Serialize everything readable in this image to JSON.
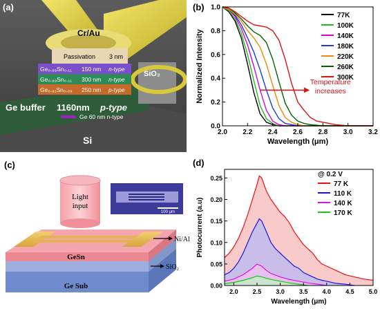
{
  "panels": {
    "a": {
      "label": "(a)",
      "contact": "Cr/Au",
      "passivation": "Passivation",
      "passivation_thick": "3 nm",
      "oxide": "SiO₂",
      "layers": [
        {
          "comp": "Ge₀.₈₉Sn₀.₁₁",
          "thick": "150 nm",
          "type": "n-type",
          "color": "#7b4fc9"
        },
        {
          "comp": "Ge₀.₈₉Sn₀.₁₁",
          "thick": "300 nm",
          "type": "n-type",
          "color": "#2e8b57"
        },
        {
          "comp": "Ge₀.₉₁Sn₀.₀₉",
          "thick": "250 nm",
          "type": "p-type",
          "color": "#c46a2a"
        }
      ],
      "buffer": "Ge buffer",
      "buffer_thick": "1160nm",
      "buffer_type": "p-type",
      "ge_layer": "Ge 60 nm n-type",
      "substrate": "Si"
    },
    "c": {
      "label": "(c)",
      "light": [
        "Light",
        "input"
      ],
      "contact": "Ni/Al",
      "oxide": "SiO₂",
      "absorber": "GeSn",
      "substrate": "Ge Sub",
      "scale_bar": "100 μm"
    }
  },
  "chart_data": [
    {
      "id": "b",
      "panel_label": "(b)",
      "type": "line",
      "xlabel": "Wavelength (μm)",
      "ylabel": "Normalized Intensity",
      "xlim": [
        2.0,
        3.2
      ],
      "ylim": [
        0.0,
        1.0
      ],
      "xticks": [
        "2.0",
        "2.2",
        "2.4",
        "2.6",
        "2.8",
        "3.0",
        "3.2"
      ],
      "yticks": [
        "0.0",
        "0.2",
        "0.4",
        "0.6",
        "0.8",
        "1.0"
      ],
      "legend_position": "top-right",
      "annotation": [
        "Temperature",
        "increases"
      ],
      "series": [
        {
          "name": "77K",
          "color": "#000000",
          "x": [
            2.0,
            2.05,
            2.1,
            2.15,
            2.2,
            2.25,
            2.3,
            2.35,
            2.4,
            2.45,
            2.5,
            2.6,
            2.8,
            3.2
          ],
          "y": [
            1.0,
            0.96,
            0.88,
            0.74,
            0.52,
            0.28,
            0.1,
            0.03,
            0.01,
            0.0,
            0.0,
            0.0,
            0.0,
            0.0
          ]
        },
        {
          "name": "100K",
          "color": "#22bb22",
          "x": [
            2.0,
            2.05,
            2.1,
            2.15,
            2.2,
            2.25,
            2.3,
            2.35,
            2.4,
            2.45,
            2.5,
            2.6,
            2.8,
            3.2
          ],
          "y": [
            1.0,
            0.97,
            0.9,
            0.78,
            0.6,
            0.38,
            0.17,
            0.06,
            0.02,
            0.0,
            0.0,
            0.0,
            0.0,
            0.0
          ]
        },
        {
          "name": "140K",
          "color": "#dd00dd",
          "x": [
            2.0,
            2.05,
            2.1,
            2.15,
            2.2,
            2.25,
            2.3,
            2.35,
            2.4,
            2.45,
            2.5,
            2.6,
            2.8,
            3.2
          ],
          "y": [
            1.0,
            0.98,
            0.92,
            0.82,
            0.68,
            0.5,
            0.3,
            0.13,
            0.04,
            0.01,
            0.0,
            0.0,
            0.0,
            0.0
          ]
        },
        {
          "name": "180K",
          "color": "#1a3bd6",
          "x": [
            2.0,
            2.05,
            2.1,
            2.15,
            2.2,
            2.25,
            2.3,
            2.35,
            2.4,
            2.45,
            2.5,
            2.55,
            2.6,
            2.8,
            3.2
          ],
          "y": [
            1.0,
            0.98,
            0.93,
            0.85,
            0.74,
            0.62,
            0.47,
            0.3,
            0.15,
            0.06,
            0.02,
            0.01,
            0.0,
            0.0,
            0.0
          ]
        },
        {
          "name": "220K",
          "color": "#ee8a00",
          "x": [
            2.0,
            2.05,
            2.1,
            2.15,
            2.2,
            2.25,
            2.3,
            2.35,
            2.4,
            2.45,
            2.5,
            2.55,
            2.6,
            2.65,
            2.8,
            3.2
          ],
          "y": [
            1.0,
            0.98,
            0.94,
            0.88,
            0.8,
            0.74,
            0.66,
            0.52,
            0.34,
            0.17,
            0.07,
            0.03,
            0.01,
            0.0,
            0.0,
            0.0
          ]
        },
        {
          "name": "260K",
          "color": "#006400",
          "x": [
            2.0,
            2.05,
            2.1,
            2.15,
            2.2,
            2.25,
            2.3,
            2.35,
            2.4,
            2.45,
            2.5,
            2.55,
            2.6,
            2.65,
            2.7,
            2.8,
            3.2
          ],
          "y": [
            1.0,
            0.99,
            0.95,
            0.9,
            0.84,
            0.79,
            0.76,
            0.7,
            0.56,
            0.37,
            0.19,
            0.09,
            0.04,
            0.02,
            0.01,
            0.0,
            0.0
          ]
        },
        {
          "name": "300K",
          "color": "#dd1111",
          "x": [
            2.0,
            2.05,
            2.1,
            2.15,
            2.2,
            2.25,
            2.3,
            2.35,
            2.4,
            2.45,
            2.5,
            2.55,
            2.6,
            2.65,
            2.7,
            2.75,
            2.8,
            2.9,
            3.0,
            3.2
          ],
          "y": [
            1.0,
            0.99,
            0.96,
            0.92,
            0.88,
            0.85,
            0.84,
            0.83,
            0.8,
            0.72,
            0.56,
            0.36,
            0.2,
            0.13,
            0.07,
            0.04,
            0.03,
            0.01,
            0.0,
            0.0
          ]
        }
      ]
    },
    {
      "id": "d",
      "panel_label": "(d)",
      "type": "area",
      "xlabel": "Wavelength (μm)",
      "ylabel": "Photocurrent (a.u)",
      "xlim": [
        1.8,
        5.0
      ],
      "ylim": [
        0.0,
        0.27
      ],
      "xticks": [
        "2.0",
        "2.5",
        "3.0",
        "3.5",
        "4.0",
        "4.5",
        "5.0"
      ],
      "yticks": [
        "0.00",
        "0.05",
        "0.10",
        "0.15",
        "0.20",
        "0.25"
      ],
      "legend_title": "@ 0.2 V",
      "legend_position": "top-right",
      "series": [
        {
          "name": "77 K",
          "color": "#ee1111",
          "fill": "#f6b8b8",
          "x": [
            1.8,
            1.9,
            2.0,
            2.1,
            2.2,
            2.3,
            2.4,
            2.5,
            2.55,
            2.6,
            2.7,
            2.8,
            2.9,
            3.0,
            3.1,
            3.2,
            3.3,
            3.4,
            3.5,
            3.6,
            3.7,
            3.8,
            3.9,
            4.0,
            4.2,
            4.4,
            4.6,
            4.8,
            5.0
          ],
          "y": [
            0.065,
            0.075,
            0.09,
            0.11,
            0.135,
            0.165,
            0.2,
            0.235,
            0.255,
            0.25,
            0.22,
            0.2,
            0.185,
            0.17,
            0.16,
            0.145,
            0.125,
            0.11,
            0.095,
            0.085,
            0.075,
            0.06,
            0.05,
            0.045,
            0.035,
            0.025,
            0.02,
            0.015,
            0.012
          ]
        },
        {
          "name": "110 K",
          "color": "#1515dd",
          "fill": "#b9b9f3",
          "x": [
            1.8,
            1.9,
            2.0,
            2.1,
            2.2,
            2.3,
            2.4,
            2.5,
            2.55,
            2.6,
            2.7,
            2.8,
            2.9,
            3.0,
            3.1,
            3.2,
            3.3,
            3.4,
            3.5,
            3.6,
            3.7,
            3.8,
            3.9,
            4.0,
            4.2,
            4.4,
            4.6
          ],
          "y": [
            0.025,
            0.03,
            0.04,
            0.055,
            0.075,
            0.1,
            0.125,
            0.145,
            0.155,
            0.15,
            0.125,
            0.1,
            0.085,
            0.075,
            0.065,
            0.055,
            0.045,
            0.04,
            0.03,
            0.025,
            0.02,
            0.015,
            0.012,
            0.01,
            0.005,
            0.003,
            0.0
          ]
        },
        {
          "name": "140 K",
          "color": "#dd11dd",
          "fill": "#f0c0f0",
          "x": [
            1.8,
            2.0,
            2.2,
            2.4,
            2.5,
            2.6,
            2.7,
            2.8,
            3.0,
            3.2,
            3.4,
            3.6,
            3.8,
            4.0
          ],
          "y": [
            0.01,
            0.015,
            0.025,
            0.04,
            0.05,
            0.045,
            0.035,
            0.028,
            0.02,
            0.014,
            0.01,
            0.006,
            0.003,
            0.0
          ]
        },
        {
          "name": "170 K",
          "color": "#11cc11",
          "fill": "#c4f0c4",
          "x": [
            1.8,
            2.0,
            2.2,
            2.4,
            2.5,
            2.6,
            2.8,
            3.0,
            3.2,
            3.4,
            3.6
          ],
          "y": [
            0.004,
            0.007,
            0.012,
            0.018,
            0.022,
            0.02,
            0.014,
            0.01,
            0.006,
            0.003,
            0.0
          ]
        }
      ]
    }
  ]
}
